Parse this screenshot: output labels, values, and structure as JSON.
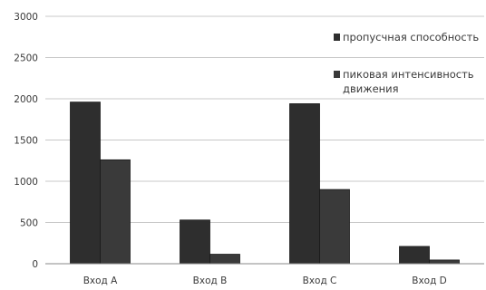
{
  "chart_data": {
    "type": "bar",
    "categories": [
      "Вход A",
      "Вход B",
      "Вход C",
      "Вход D"
    ],
    "series": [
      {
        "name": "пропусчная способность",
        "values": [
          1960,
          530,
          1940,
          210
        ]
      },
      {
        "name": "пиковая интенсивность движения",
        "name_lines": [
          "пиковая интенсивность",
          "движения"
        ],
        "values": [
          1260,
          115,
          900,
          45
        ]
      }
    ],
    "yticks": [
      "0",
      "500",
      "1000",
      "1500",
      "2000",
      "2500",
      "3000"
    ],
    "ylim": [
      0,
      3000
    ],
    "grid": true,
    "legend": "top-right",
    "colors": {
      "series": [
        "#2e2e2e",
        "#3a3a3a"
      ],
      "grid": "#c8c8c8",
      "axis": "#8a8a8a"
    }
  }
}
